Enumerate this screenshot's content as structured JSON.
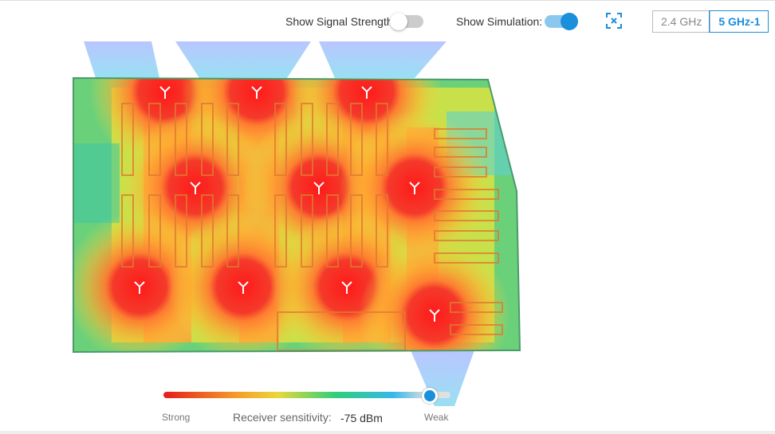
{
  "toolbar": {
    "signal_strength_label": "Show Signal Strength:",
    "signal_strength_on": false,
    "simulation_label": "Show Simulation:",
    "simulation_on": true,
    "bands": [
      {
        "label": "2.4 GHz",
        "active": false
      },
      {
        "label": "5 GHz-1",
        "active": true
      }
    ]
  },
  "legend": {
    "strong_label": "Strong",
    "sensitivity_label": "Receiver sensitivity:",
    "sensitivity_value": "-75 dBm",
    "weak_label": "Weak"
  }
}
